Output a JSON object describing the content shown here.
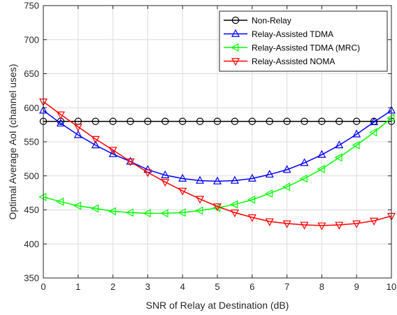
{
  "chart_data": {
    "type": "line",
    "title": "",
    "xlabel": "SNR of Relay at Destination (dB)",
    "ylabel": "Optimal Average AoI (channel uses)",
    "xlim": [
      0,
      10
    ],
    "ylim": [
      350,
      750
    ],
    "xticks": [
      "0",
      "1",
      "2",
      "3",
      "4",
      "5",
      "6",
      "7",
      "8",
      "9",
      "10"
    ],
    "yticks": [
      "350",
      "400",
      "450",
      "500",
      "550",
      "600",
      "650",
      "700",
      "750"
    ],
    "grid": true,
    "legend_position": "top-right",
    "x": [
      0,
      0.5,
      1,
      1.5,
      2,
      2.5,
      3,
      3.5,
      4,
      4.5,
      5,
      5.5,
      6,
      6.5,
      7,
      7.5,
      8,
      8.5,
      9,
      9.5,
      10
    ],
    "series": [
      {
        "name": "Non-Relay",
        "color": "#000000",
        "marker": "circle",
        "values": [
          580,
          580,
          580,
          580,
          580,
          580,
          580,
          580,
          580,
          580,
          580,
          580,
          580,
          580,
          580,
          580,
          580,
          580,
          580,
          580,
          580
        ]
      },
      {
        "name": "Relay-Assisted TDMA",
        "color": "#0000ff",
        "marker": "triangle-up",
        "values": [
          596,
          577,
          560,
          545,
          532,
          521,
          509,
          501,
          496,
          493,
          492,
          493,
          496,
          502,
          509,
          519,
          531,
          545,
          561,
          579,
          596
        ]
      },
      {
        "name": "Relay-Assisted TDMA (MRC)",
        "color": "#00ff00",
        "marker": "triangle-left",
        "values": [
          469,
          462,
          456,
          452,
          448,
          446,
          445,
          445,
          446,
          449,
          453,
          458,
          465,
          474,
          484,
          496,
          510,
          527,
          545,
          564,
          585
        ]
      },
      {
        "name": "Relay-Assisted NOMA",
        "color": "#ff0000",
        "marker": "triangle-down",
        "values": [
          609,
          590,
          572,
          554,
          538,
          521,
          505,
          491,
          478,
          466,
          455,
          446,
          439,
          433,
          430,
          428,
          427,
          428,
          430,
          434,
          441
        ]
      }
    ]
  }
}
